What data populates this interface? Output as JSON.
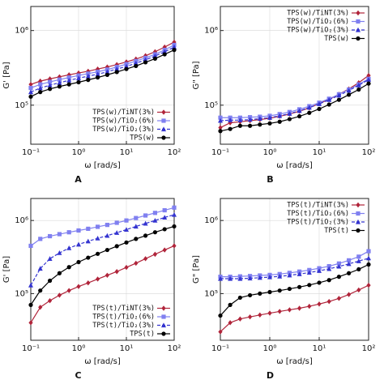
{
  "chart_data": [
    {
      "type": "line",
      "label": "A",
      "xlabel": "ω [rad/s]",
      "ylabel": "G' [Pa]",
      "xlog": true,
      "ylog": true,
      "grid": true,
      "legend": "lower right",
      "xlim": [
        0.1,
        100
      ],
      "xticks": [
        {
          "value": 0.1,
          "label": "10⁻¹"
        },
        {
          "value": 1,
          "label": "10⁰"
        },
        {
          "value": 10,
          "label": "10¹"
        },
        {
          "value": 100,
          "label": "10²"
        }
      ],
      "ylim": [
        30000,
        2100000
      ],
      "yticks": [
        {
          "value": 100000,
          "label": "10⁵"
        },
        {
          "value": 1000000,
          "label": "10⁶"
        }
      ],
      "x": [
        0.1,
        0.158,
        0.251,
        0.398,
        0.631,
        1,
        1.585,
        2.512,
        3.981,
        6.31,
        10,
        15.85,
        25.12,
        39.81,
        63.1,
        100
      ],
      "series": [
        {
          "name": "TPS(w)/TiNT(3%)",
          "color": "#b0243a",
          "marker": "diamond",
          "dash": false,
          "values": [
            190000,
            210000,
            225000,
            240000,
            255000,
            270000,
            285000,
            305000,
            325000,
            350000,
            380000,
            415000,
            460000,
            520000,
            600000,
            700000
          ]
        },
        {
          "name": "TPS(w)/TiO₂(6%)",
          "color": "#8080f0",
          "marker": "square",
          "dash": false,
          "values": [
            170000,
            190000,
            205000,
            220000,
            235000,
            250000,
            265000,
            280000,
            300000,
            325000,
            355000,
            390000,
            430000,
            480000,
            550000,
            640000
          ]
        },
        {
          "name": "TPS(w)/TiO₂(3%)",
          "color": "#3434d0",
          "marker": "triangle",
          "dash": true,
          "values": [
            150000,
            170000,
            185000,
            200000,
            215000,
            230000,
            245000,
            260000,
            280000,
            305000,
            330000,
            365000,
            405000,
            455000,
            520000,
            600000
          ]
        },
        {
          "name": "TPS(w)",
          "color": "#000000",
          "marker": "circle",
          "dash": false,
          "values": [
            130000,
            150000,
            165000,
            178000,
            190000,
            203000,
            218000,
            235000,
            255000,
            278000,
            305000,
            335000,
            375000,
            420000,
            480000,
            550000
          ]
        }
      ]
    },
    {
      "type": "line",
      "label": "B",
      "xlabel": "ω [rad/s]",
      "ylabel": "G\" [Pa]",
      "xlog": true,
      "ylog": true,
      "grid": true,
      "legend": "upper right",
      "xlim": [
        0.1,
        100
      ],
      "xticks": [
        {
          "value": 0.1,
          "label": "10⁻¹"
        },
        {
          "value": 1,
          "label": "10⁰"
        },
        {
          "value": 10,
          "label": "10¹"
        },
        {
          "value": 100,
          "label": "10²"
        }
      ],
      "ylim": [
        30000,
        2100000
      ],
      "yticks": [
        {
          "value": 100000,
          "label": "10⁵"
        },
        {
          "value": 1000000,
          "label": "10⁶"
        }
      ],
      "x": [
        0.1,
        0.158,
        0.251,
        0.398,
        0.631,
        1,
        1.585,
        2.512,
        3.981,
        6.31,
        10,
        15.85,
        25.12,
        39.81,
        63.1,
        100
      ],
      "series": [
        {
          "name": "TPS(w)/TiNT(3%)",
          "color": "#b0243a",
          "marker": "diamond",
          "dash": false,
          "values": [
            50000,
            58000,
            60000,
            62000,
            64000,
            67000,
            71000,
            76000,
            83000,
            92000,
            105000,
            120000,
            140000,
            165000,
            200000,
            250000
          ]
        },
        {
          "name": "TPS(w)/TiO₂(6%)",
          "color": "#8080f0",
          "marker": "square",
          "dash": false,
          "values": [
            68000,
            68000,
            68000,
            69000,
            70000,
            72000,
            76000,
            81000,
            88000,
            97000,
            108000,
            122000,
            140000,
            162000,
            190000,
            225000
          ]
        },
        {
          "name": "TPS(w)/TiO₂(3%)",
          "color": "#3434d0",
          "marker": "triangle",
          "dash": true,
          "values": [
            62000,
            63000,
            63000,
            64000,
            66000,
            68000,
            72000,
            77000,
            84000,
            93000,
            104000,
            118000,
            135000,
            157000,
            185000,
            220000
          ]
        },
        {
          "name": "TPS(w)",
          "color": "#000000",
          "marker": "circle",
          "dash": false,
          "values": [
            45000,
            48000,
            53000,
            53000,
            55000,
            57000,
            60000,
            65000,
            71000,
            79000,
            89000,
            102000,
            118000,
            138000,
            162000,
            195000
          ]
        }
      ]
    },
    {
      "type": "line",
      "label": "C",
      "xlabel": "ω [rad/s]",
      "ylabel": "G' [Pa]",
      "xlog": true,
      "ylog": true,
      "grid": true,
      "legend": "lower right",
      "xlim": [
        0.1,
        100
      ],
      "xticks": [
        {
          "value": 0.1,
          "label": "10⁻¹"
        },
        {
          "value": 1,
          "label": "10⁰"
        },
        {
          "value": 10,
          "label": "10¹"
        },
        {
          "value": 100,
          "label": "10²"
        }
      ],
      "ylim": [
        23000,
        2000000
      ],
      "yticks": [
        {
          "value": 100000,
          "label": "10⁵"
        },
        {
          "value": 1000000,
          "label": "10⁶"
        }
      ],
      "x": [
        0.1,
        0.158,
        0.251,
        0.398,
        0.631,
        1,
        1.585,
        2.512,
        3.981,
        6.31,
        10,
        15.85,
        25.12,
        39.81,
        63.1,
        100
      ],
      "series": [
        {
          "name": "TPS(t)/TiNT(3%)",
          "color": "#b0243a",
          "marker": "diamond",
          "dash": false,
          "values": [
            40000,
            65000,
            80000,
            95000,
            110000,
            125000,
            140000,
            158000,
            178000,
            200000,
            228000,
            260000,
            300000,
            345000,
            395000,
            450000
          ]
        },
        {
          "name": "TPS(t)/TiO₂(6%)",
          "color": "#8080f0",
          "marker": "square",
          "dash": false,
          "values": [
            450000,
            560000,
            610000,
            650000,
            690000,
            730000,
            770000,
            820000,
            870000,
            930000,
            1000000,
            1080000,
            1170000,
            1270000,
            1380000,
            1500000
          ]
        },
        {
          "name": "TPS(t)/TiO₂(3%)",
          "color": "#3434d0",
          "marker": "triangle",
          "dash": true,
          "values": [
            130000,
            220000,
            300000,
            360000,
            420000,
            470000,
            520000,
            570000,
            620000,
            680000,
            750000,
            830000,
            910000,
            1000000,
            1100000,
            1200000
          ]
        },
        {
          "name": "TPS(t)",
          "color": "#000000",
          "marker": "circle",
          "dash": false,
          "values": [
            70000,
            110000,
            150000,
            190000,
            230000,
            270000,
            310000,
            350000,
            395000,
            445000,
            500000,
            560000,
            620000,
            690000,
            760000,
            830000
          ]
        }
      ]
    },
    {
      "type": "line",
      "label": "D",
      "xlabel": "ω [rad/s]",
      "ylabel": "G\" [Pa]",
      "xlog": true,
      "ylog": true,
      "grid": true,
      "legend": "upper right",
      "xlim": [
        0.1,
        100
      ],
      "xticks": [
        {
          "value": 0.1,
          "label": "10⁻¹"
        },
        {
          "value": 1,
          "label": "10⁰"
        },
        {
          "value": 10,
          "label": "10¹"
        },
        {
          "value": 100,
          "label": "10²"
        }
      ],
      "ylim": [
        23000,
        2000000
      ],
      "yticks": [
        {
          "value": 100000,
          "label": "10⁵"
        },
        {
          "value": 1000000,
          "label": "10⁶"
        }
      ],
      "x": [
        0.1,
        0.158,
        0.251,
        0.398,
        0.631,
        1,
        1.585,
        2.512,
        3.981,
        6.31,
        10,
        15.85,
        25.12,
        39.81,
        63.1,
        100
      ],
      "series": [
        {
          "name": "TPS(t)/TiNT(3%)",
          "color": "#b0243a",
          "marker": "diamond",
          "dash": false,
          "values": [
            30000,
            40000,
            45000,
            48000,
            51000,
            54000,
            57000,
            60000,
            63000,
            67000,
            72000,
            78000,
            86000,
            97000,
            112000,
            130000
          ]
        },
        {
          "name": "TPS(t)/TiO₂(6%)",
          "color": "#8080f0",
          "marker": "square",
          "dash": false,
          "values": [
            170000,
            170000,
            172000,
            174000,
            177000,
            180000,
            185000,
            192000,
            200000,
            210000,
            222000,
            237000,
            258000,
            285000,
            320000,
            380000
          ]
        },
        {
          "name": "TPS(t)/TiO₂(3%)",
          "color": "#3434d0",
          "marker": "triangle",
          "dash": true,
          "values": [
            160000,
            160000,
            160000,
            162000,
            165000,
            168000,
            172000,
            178000,
            185000,
            194000,
            205000,
            218000,
            235000,
            255000,
            278000,
            305000
          ]
        },
        {
          "name": "TPS(t)",
          "color": "#000000",
          "marker": "circle",
          "dash": false,
          "values": [
            50000,
            70000,
            88000,
            95000,
            100000,
            105000,
            110000,
            116000,
            123000,
            131000,
            141000,
            153000,
            170000,
            190000,
            215000,
            250000
          ]
        }
      ]
    }
  ]
}
